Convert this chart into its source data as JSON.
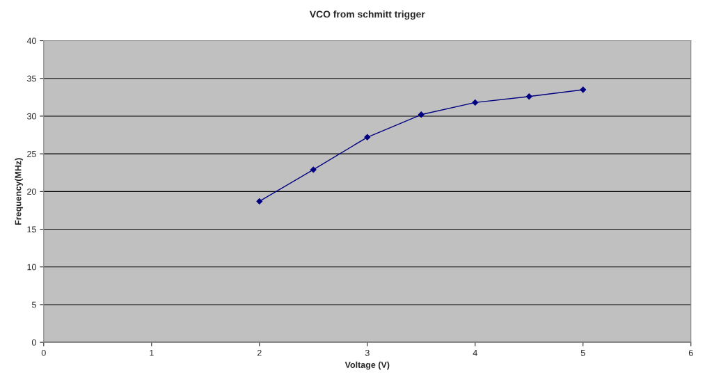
{
  "chart_data": {
    "type": "line",
    "title": "VCO from schmitt trigger",
    "xlabel": "Voltage (V)",
    "ylabel": "Frequency(MHz)",
    "x": [
      2,
      2.5,
      3,
      3.5,
      4,
      4.5,
      5
    ],
    "series": [
      {
        "color": "#000080",
        "values": [
          18.7,
          22.9,
          27.2,
          30.2,
          31.8,
          32.6,
          33.5
        ]
      }
    ],
    "xlim": [
      0,
      6
    ],
    "xticks": [
      0,
      1,
      2,
      3,
      4,
      5,
      6
    ],
    "ylim": [
      0,
      40
    ],
    "yticks": [
      0,
      5,
      10,
      15,
      20,
      25,
      30,
      35,
      40
    ],
    "grid": "y",
    "marker": "diamond",
    "line_style": "solid"
  }
}
